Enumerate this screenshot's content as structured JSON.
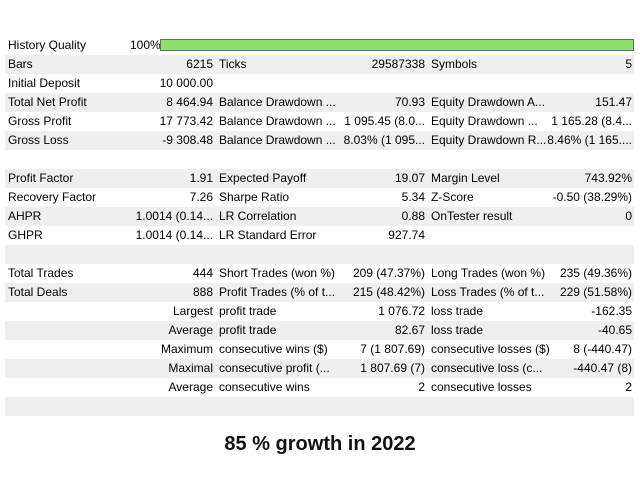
{
  "history_quality": {
    "label": "History Quality",
    "value": "100%",
    "fill_percent": 100,
    "bar_color": "#90e070"
  },
  "rows": [
    {
      "shade": true,
      "c0": "Bars",
      "c1": "6215",
      "c2": "Ticks",
      "c3": "29587338",
      "c4": "Symbols",
      "c5": "5"
    },
    {
      "shade": false,
      "c0": "Initial Deposit",
      "c1": "10 000.00",
      "c2": "",
      "c3": "",
      "c4": "",
      "c5": ""
    },
    {
      "shade": true,
      "c0": "Total Net Profit",
      "c1": "8 464.94",
      "c2": "Balance Drawdown ...",
      "c3": "70.93",
      "c4": "Equity Drawdown A...",
      "c5": "151.47"
    },
    {
      "shade": false,
      "c0": "Gross Profit",
      "c1": "17 773.42",
      "c2": "Balance Drawdown ...",
      "c3": "1 095.45 (8.0...",
      "c4": "Equity Drawdown ...",
      "c5": "1 165.28 (8.4..."
    },
    {
      "shade": true,
      "c0": "Gross Loss",
      "c1": "-9 308.48",
      "c2": "Balance Drawdown ...",
      "c3": "8.03% (1 095...",
      "c4": "Equity Drawdown R...",
      "c5": "8.46% (1 165...."
    },
    {
      "shade": false,
      "c0": "",
      "c1": "",
      "c2": "",
      "c3": "",
      "c4": "",
      "c5": ""
    },
    {
      "shade": true,
      "c0": "Profit Factor",
      "c1": "1.91",
      "c2": "Expected Payoff",
      "c3": "19.07",
      "c4": "Margin Level",
      "c5": "743.92%"
    },
    {
      "shade": false,
      "c0": "Recovery Factor",
      "c1": "7.26",
      "c2": "Sharpe Ratio",
      "c3": "5.34",
      "c4": "Z-Score",
      "c5": "-0.50 (38.29%)"
    },
    {
      "shade": true,
      "c0": "AHPR",
      "c1": "1.0014 (0.14...",
      "c2": "LR Correlation",
      "c3": "0.88",
      "c4": "OnTester result",
      "c5": "0"
    },
    {
      "shade": false,
      "c0": "GHPR",
      "c1": "1.0014 (0.14...",
      "c2": "LR Standard Error",
      "c3": "927.74",
      "c4": "",
      "c5": ""
    },
    {
      "shade": true,
      "c0": "",
      "c1": "",
      "c2": "",
      "c3": "",
      "c4": "",
      "c5": ""
    },
    {
      "shade": false,
      "c0": "Total Trades",
      "c1": "444",
      "c2": "Short Trades (won %)",
      "c3": "209 (47.37%)",
      "c4": "Long Trades (won %)",
      "c5": "235 (49.36%)"
    },
    {
      "shade": true,
      "c0": "Total Deals",
      "c1": "888",
      "c2": "Profit Trades (% of t...",
      "c3": "215 (48.42%)",
      "c4": "Loss Trades (% of t...",
      "c5": "229 (51.58%)"
    },
    {
      "shade": false,
      "merged": true,
      "c01": "Largest",
      "c2": "profit trade",
      "c3": "1 076.72",
      "c4": "loss trade",
      "c5": "-162.35"
    },
    {
      "shade": true,
      "merged": true,
      "c01": "Average",
      "c2": "profit trade",
      "c3": "82.67",
      "c4": "loss trade",
      "c5": "-40.65"
    },
    {
      "shade": false,
      "merged": true,
      "c01": "Maximum",
      "c2": "consecutive wins ($)",
      "c3": "7 (1 807.69)",
      "c4": "consecutive losses ($)",
      "c5": "8 (-440.47)"
    },
    {
      "shade": true,
      "merged": true,
      "c01": "Maximal",
      "c2": "consecutive profit (...",
      "c3": "1 807.69 (7)",
      "c4": "consecutive loss (c...",
      "c5": "-440.47 (8)"
    },
    {
      "shade": false,
      "merged": true,
      "c01": "Average",
      "c2": "consecutive wins",
      "c3": "2",
      "c4": "consecutive losses",
      "c5": "2"
    },
    {
      "shade": true,
      "c0": "",
      "c1": "",
      "c2": "",
      "c3": "",
      "c4": "",
      "c5": ""
    }
  ],
  "caption": "85 % growth in 2022"
}
